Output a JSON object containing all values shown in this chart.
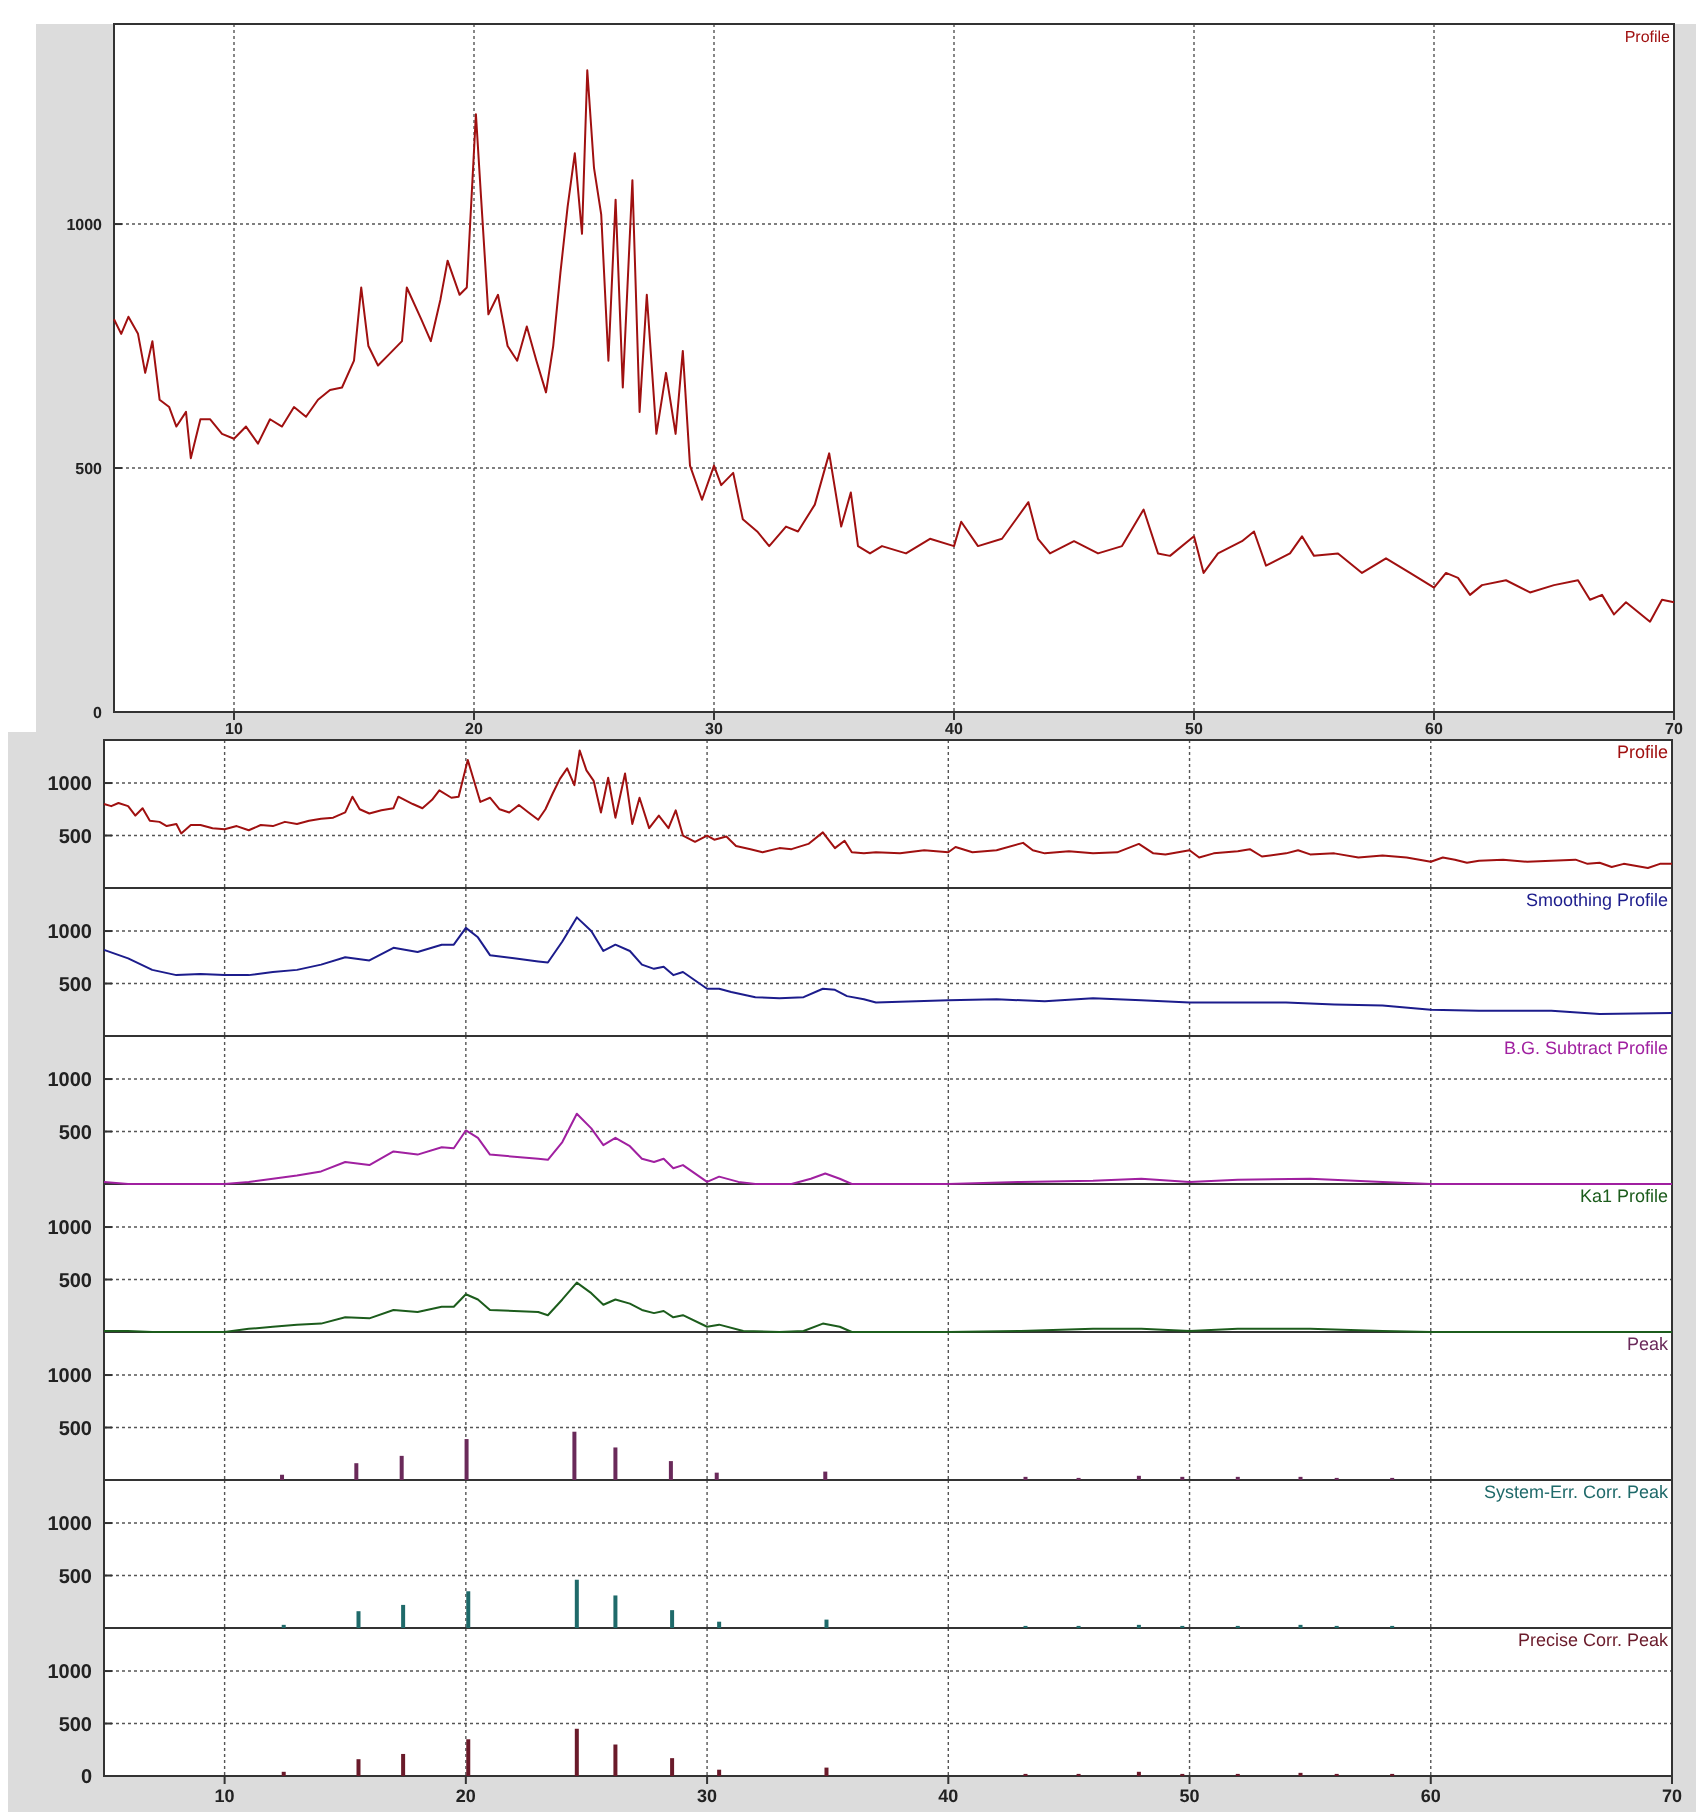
{
  "chart_data": [
    {
      "type": "line",
      "xlim": [
        5,
        70
      ],
      "ylim": [
        0,
        1410
      ],
      "xticks": [
        10,
        20,
        30,
        40,
        50,
        60,
        70
      ],
      "yticks": [
        0,
        500,
        1000
      ],
      "grid": true,
      "legend": "top right",
      "series": [
        {
          "name": "Profile",
          "color": "#a01010",
          "x": [
            5,
            5.3,
            5.6,
            6,
            6.3,
            6.6,
            6.9,
            7.3,
            7.6,
            8,
            8.2,
            8.6,
            9,
            9.5,
            10,
            10.5,
            11,
            11.5,
            12,
            12.5,
            13,
            13.5,
            14,
            14.5,
            15,
            15.3,
            15.6,
            16,
            16.5,
            17,
            17.2,
            17.8,
            18.2,
            18.6,
            18.9,
            19.4,
            19.7,
            20.08,
            20.3,
            20.6,
            21,
            21.4,
            21.8,
            22.2,
            22.6,
            23,
            23.3,
            23.6,
            23.9,
            24.2,
            24.5,
            24.72,
            25,
            25.3,
            25.6,
            25.9,
            26.2,
            26.6,
            26.9,
            27.2,
            27.6,
            28,
            28.4,
            28.7,
            29,
            29.5,
            30,
            30.3,
            30.8,
            31.2,
            31.8,
            32.3,
            33,
            33.5,
            34.2,
            34.8,
            35.3,
            35.7,
            36,
            36.5,
            37,
            38,
            39,
            40,
            40.3,
            41,
            42,
            43.1,
            43.5,
            44,
            45,
            46,
            47,
            47.9,
            48.5,
            49,
            50,
            50.4,
            51,
            52,
            52.5,
            53,
            54,
            54.5,
            55,
            56,
            57,
            58,
            59,
            60,
            60.5,
            61,
            61.5,
            62,
            63,
            64,
            65,
            66,
            66.5,
            67,
            67.5,
            68,
            69,
            69.5,
            70
          ],
          "values": [
            805,
            775,
            810,
            775,
            695,
            760,
            640,
            625,
            585,
            615,
            520,
            600,
            600,
            570,
            560,
            585,
            550,
            600,
            585,
            625,
            605,
            640,
            660,
            665,
            720,
            870,
            750,
            710,
            735,
            760,
            870,
            805,
            760,
            845,
            925,
            855,
            870,
            1225,
            1050,
            815,
            855,
            750,
            720,
            790,
            720,
            655,
            750,
            900,
            1035,
            1145,
            980,
            1315,
            1115,
            1020,
            720,
            1050,
            665,
            1090,
            615,
            855,
            570,
            695,
            570,
            740,
            505,
            435,
            505,
            465,
            490,
            395,
            370,
            340,
            380,
            370,
            425,
            530,
            380,
            450,
            340,
            325,
            340,
            325,
            355,
            340,
            390,
            340,
            355,
            430,
            355,
            325,
            350,
            325,
            340,
            415,
            325,
            320,
            360,
            285,
            325,
            350,
            370,
            300,
            325,
            360,
            320,
            325,
            285,
            315,
            285,
            255,
            285,
            275,
            240,
            260,
            270,
            245,
            260,
            270,
            230,
            240,
            200,
            225,
            185,
            230,
            225
          ]
        }
      ]
    },
    {
      "type": "line",
      "xlim": [
        5,
        70
      ],
      "ylim": [
        0,
        1410
      ],
      "yticks": [
        500,
        1000
      ],
      "grid": true,
      "legend": "top right",
      "tick_labels": "y",
      "series": [
        {
          "name": "Profile",
          "color": "#a01010",
          "x": [
            5,
            5.3,
            5.6,
            6,
            6.3,
            6.6,
            6.9,
            7.3,
            7.6,
            8,
            8.2,
            8.6,
            9,
            9.5,
            10,
            10.5,
            11,
            11.5,
            12,
            12.5,
            13,
            13.5,
            14,
            14.5,
            15,
            15.3,
            15.6,
            16,
            16.5,
            17,
            17.2,
            17.8,
            18.2,
            18.6,
            18.9,
            19.4,
            19.7,
            20.08,
            20.3,
            20.6,
            21,
            21.4,
            21.8,
            22.2,
            22.6,
            23,
            23.3,
            23.6,
            23.9,
            24.2,
            24.5,
            24.72,
            25,
            25.3,
            25.6,
            25.9,
            26.2,
            26.6,
            26.9,
            27.2,
            27.6,
            28,
            28.4,
            28.7,
            29,
            29.5,
            30,
            30.3,
            30.8,
            31.2,
            31.8,
            32.3,
            33,
            33.5,
            34.2,
            34.8,
            35.3,
            35.7,
            36,
            36.5,
            37,
            38,
            39,
            40,
            40.3,
            41,
            42,
            43.1,
            43.5,
            44,
            45,
            46,
            47,
            47.9,
            48.5,
            49,
            50,
            50.4,
            51,
            52,
            52.5,
            53,
            54,
            54.5,
            55,
            56,
            57,
            58,
            59,
            60,
            60.5,
            61,
            61.5,
            62,
            63,
            64,
            65,
            66,
            66.5,
            67,
            67.5,
            68,
            69,
            69.5,
            70
          ],
          "values": [
            800,
            780,
            810,
            780,
            690,
            760,
            640,
            630,
            590,
            610,
            520,
            600,
            600,
            570,
            560,
            590,
            550,
            600,
            590,
            630,
            610,
            640,
            660,
            670,
            720,
            870,
            750,
            710,
            740,
            760,
            870,
            800,
            760,
            840,
            930,
            860,
            870,
            1220,
            1050,
            820,
            860,
            750,
            720,
            790,
            720,
            650,
            750,
            900,
            1040,
            1140,
            980,
            1310,
            1120,
            1020,
            720,
            1050,
            670,
            1090,
            610,
            860,
            570,
            690,
            570,
            740,
            500,
            440,
            500,
            460,
            490,
            400,
            370,
            340,
            380,
            370,
            420,
            530,
            380,
            450,
            340,
            330,
            340,
            330,
            360,
            340,
            390,
            340,
            360,
            430,
            360,
            330,
            350,
            330,
            340,
            420,
            330,
            320,
            360,
            290,
            330,
            350,
            370,
            300,
            330,
            360,
            320,
            330,
            290,
            310,
            290,
            250,
            290,
            270,
            240,
            260,
            270,
            250,
            260,
            270,
            230,
            240,
            200,
            230,
            190,
            230,
            230
          ]
        }
      ]
    },
    {
      "type": "line",
      "xlim": [
        5,
        70
      ],
      "ylim": [
        0,
        1410
      ],
      "yticks": [
        500,
        1000
      ],
      "grid": true,
      "legend": "top right",
      "tick_labels": "y",
      "series": [
        {
          "name": "Smoothing Profile",
          "color": "#1c1c8c",
          "x": [
            5,
            6,
            7,
            8,
            9,
            10,
            11,
            12,
            13,
            14,
            15,
            16,
            17,
            18,
            19,
            19.5,
            20,
            20.5,
            21,
            22,
            23,
            23.4,
            24,
            24.6,
            25.2,
            25.7,
            26.2,
            26.8,
            27.3,
            27.8,
            28.2,
            28.6,
            29,
            30,
            30.5,
            31,
            32,
            33,
            34,
            34.8,
            35.3,
            35.8,
            36.5,
            37,
            40,
            42,
            44,
            46,
            48,
            50,
            52,
            54,
            56,
            58,
            60,
            62,
            65,
            67,
            70
          ],
          "values": [
            820,
            740,
            630,
            580,
            590,
            580,
            580,
            610,
            630,
            680,
            750,
            720,
            840,
            800,
            870,
            870,
            1030,
            940,
            770,
            740,
            710,
            700,
            900,
            1130,
            1000,
            810,
            870,
            810,
            680,
            640,
            660,
            580,
            610,
            450,
            450,
            420,
            370,
            360,
            370,
            450,
            440,
            380,
            350,
            320,
            340,
            350,
            330,
            360,
            340,
            320,
            320,
            320,
            300,
            290,
            250,
            240,
            240,
            210,
            220
          ]
        }
      ]
    },
    {
      "type": "line",
      "xlim": [
        5,
        70
      ],
      "ylim": [
        0,
        1410
      ],
      "yticks": [
        500,
        1000
      ],
      "grid": true,
      "legend": "top right",
      "tick_labels": "y",
      "series": [
        {
          "name": "B.G. Subtract Profile",
          "color": "#a020a0",
          "x": [
            5,
            6,
            8,
            10,
            11,
            12,
            13,
            14,
            15,
            16,
            17,
            18,
            19,
            19.5,
            20,
            20.5,
            21,
            22,
            23,
            23.4,
            24,
            24.6,
            25.2,
            25.7,
            26.2,
            26.8,
            27.3,
            27.8,
            28.2,
            28.6,
            29,
            30,
            30.5,
            31.3,
            32,
            33.5,
            34.3,
            34.9,
            35.5,
            36,
            40,
            43,
            46,
            48,
            50,
            52,
            55,
            58,
            60,
            65,
            70
          ],
          "values": [
            20,
            0,
            0,
            0,
            20,
            50,
            80,
            120,
            210,
            180,
            310,
            280,
            350,
            340,
            510,
            440,
            280,
            260,
            240,
            230,
            400,
            670,
            530,
            370,
            440,
            360,
            240,
            210,
            240,
            150,
            180,
            20,
            70,
            20,
            0,
            0,
            50,
            100,
            50,
            0,
            0,
            20,
            30,
            50,
            20,
            40,
            50,
            20,
            0,
            0,
            0
          ]
        }
      ]
    },
    {
      "type": "line",
      "xlim": [
        5,
        70
      ],
      "ylim": [
        0,
        1410
      ],
      "yticks": [
        500,
        1000
      ],
      "grid": true,
      "legend": "top right",
      "tick_labels": "y",
      "series": [
        {
          "name": "Ka1 Profile",
          "color": "#1c5c1c",
          "x": [
            5,
            6,
            7,
            10,
            11,
            12,
            13,
            14,
            15,
            16,
            17,
            18,
            19,
            19.5,
            20,
            20.5,
            21,
            22,
            23,
            23.4,
            24,
            24.6,
            25.2,
            25.7,
            26.2,
            26.8,
            27.3,
            27.8,
            28.2,
            28.6,
            29,
            30,
            30.5,
            31.5,
            33,
            34,
            34.8,
            35.5,
            36,
            40,
            43,
            46,
            48,
            50,
            52,
            55,
            58,
            60,
            70
          ],
          "values": [
            10,
            10,
            0,
            0,
            30,
            50,
            70,
            80,
            140,
            130,
            210,
            190,
            240,
            240,
            360,
            310,
            210,
            200,
            190,
            160,
            310,
            470,
            370,
            260,
            310,
            270,
            210,
            180,
            200,
            140,
            160,
            50,
            70,
            10,
            0,
            10,
            80,
            50,
            0,
            0,
            10,
            30,
            30,
            10,
            30,
            30,
            10,
            0,
            0
          ]
        }
      ]
    },
    {
      "type": "bar",
      "xlim": [
        5,
        70
      ],
      "ylim": [
        0,
        1410
      ],
      "yticks": [
        500,
        1000
      ],
      "grid": true,
      "legend": "top right",
      "tick_labels": "y",
      "series": [
        {
          "name": "Peak",
          "color": "#6a2a5a",
          "x": [
            12.38,
            15.46,
            17.34,
            20.03,
            24.5,
            26.2,
            28.5,
            30.4,
            34.9,
            43.2,
            45.4,
            47.9,
            49.7,
            52,
            54.6,
            56.1,
            58.4
          ],
          "values": [
            50,
            160,
            230,
            390,
            460,
            310,
            180,
            70,
            80,
            30,
            20,
            40,
            30,
            30,
            30,
            20,
            20
          ]
        }
      ]
    },
    {
      "type": "bar",
      "xlim": [
        5,
        70
      ],
      "ylim": [
        0,
        1410
      ],
      "yticks": [
        500,
        1000
      ],
      "grid": true,
      "legend": "top right",
      "tick_labels": "y",
      "series": [
        {
          "name": "System-Err. Corr. Peak",
          "color": "#1f6a6a",
          "x": [
            12.45,
            15.55,
            17.4,
            20.1,
            24.6,
            26.2,
            28.55,
            30.5,
            34.95,
            43.2,
            45.4,
            47.9,
            49.7,
            52,
            54.6,
            56.1,
            58.4
          ],
          "values": [
            30,
            160,
            220,
            350,
            460,
            310,
            170,
            60,
            80,
            20,
            20,
            30,
            20,
            20,
            30,
            20,
            20
          ]
        }
      ]
    },
    {
      "type": "bar",
      "xlim": [
        5,
        70
      ],
      "ylim": [
        0,
        1410
      ],
      "xticks": [
        10,
        20,
        30,
        40,
        50,
        60,
        70
      ],
      "yticks": [
        0,
        500,
        1000
      ],
      "grid": true,
      "legend": "top right",
      "series": [
        {
          "name": "Precise Corr. Peak",
          "color": "#6a1a2a",
          "x": [
            12.45,
            15.55,
            17.4,
            20.1,
            24.6,
            26.2,
            28.55,
            30.5,
            34.95,
            43.2,
            45.4,
            47.9,
            49.7,
            52,
            54.6,
            56.1,
            58.4
          ],
          "values": [
            40,
            160,
            210,
            350,
            450,
            300,
            170,
            60,
            80,
            20,
            20,
            40,
            20,
            20,
            30,
            20,
            20
          ]
        }
      ]
    }
  ]
}
